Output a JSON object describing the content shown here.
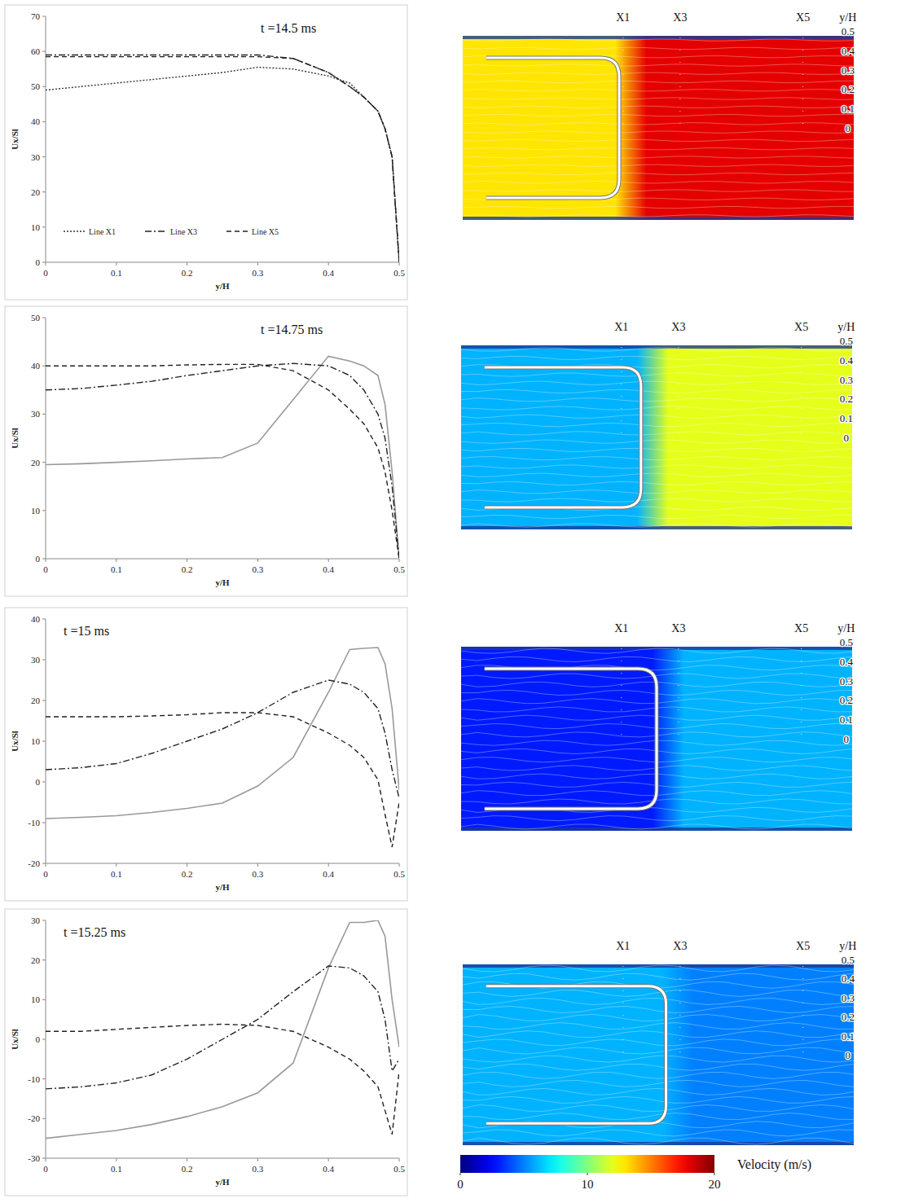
{
  "chart_data": [
    {
      "type": "line",
      "title": "t =14.5 ms",
      "x_label": "y/H",
      "y_label": "Ux/Sl",
      "x": [
        0,
        0.05,
        0.1,
        0.15,
        0.2,
        0.25,
        0.3,
        0.35,
        0.4,
        0.43,
        0.45,
        0.47,
        0.48,
        0.49,
        0.5
      ],
      "xlim": [
        0,
        0.5
      ],
      "xticks": [
        0,
        0.1,
        0.2,
        0.3,
        0.4,
        0.5
      ],
      "ylim": [
        0,
        70
      ],
      "yticks": [
        0,
        10,
        20,
        30,
        40,
        50,
        60,
        70
      ],
      "grid": false,
      "legend": "lower left",
      "series": [
        {
          "name": "Line X1",
          "color": "#333333",
          "line_style": "dotted",
          "values": [
            49,
            50,
            51,
            52,
            53,
            54,
            55.5,
            55,
            53,
            51,
            47,
            43,
            38,
            30,
            0
          ]
        },
        {
          "name": "Line X3",
          "color": "#222222",
          "line_style": "dashdot",
          "values": [
            59,
            59,
            59,
            59,
            59,
            59,
            59,
            58,
            54,
            50,
            47,
            43,
            38,
            30,
            0
          ]
        },
        {
          "name": "Line X5",
          "color": "#222222",
          "line_style": "dashed",
          "values": [
            58.5,
            58.5,
            58.5,
            58.5,
            58.5,
            58.5,
            58.5,
            58,
            54,
            50,
            47,
            43,
            38,
            30,
            0
          ]
        }
      ]
    },
    {
      "type": "line",
      "title": "t =14.75 ms",
      "x_label": "y/H",
      "y_label": "Ux/Sl",
      "x": [
        0,
        0.05,
        0.1,
        0.15,
        0.2,
        0.25,
        0.3,
        0.35,
        0.4,
        0.43,
        0.45,
        0.47,
        0.48,
        0.49,
        0.5
      ],
      "xlim": [
        0,
        0.5
      ],
      "xticks": [
        0,
        0.1,
        0.2,
        0.3,
        0.4,
        0.5
      ],
      "ylim": [
        0,
        50
      ],
      "yticks": [
        0,
        10,
        20,
        30,
        40,
        50
      ],
      "grid": false,
      "series": [
        {
          "name": "Line X1",
          "color": "#999999",
          "line_style": "solid",
          "values": [
            19.5,
            19.7,
            20,
            20.3,
            20.7,
            21,
            24,
            33,
            42,
            41,
            40,
            38,
            32,
            18,
            0
          ]
        },
        {
          "name": "Line X3",
          "color": "#222222",
          "line_style": "dashdot",
          "values": [
            35,
            35.3,
            36,
            36.8,
            38,
            39,
            40,
            40.5,
            40,
            38,
            35,
            30,
            25,
            15,
            0
          ]
        },
        {
          "name": "Line X5",
          "color": "#222222",
          "line_style": "dashed",
          "values": [
            40,
            40,
            40,
            40,
            40.2,
            40.3,
            40.3,
            39,
            35,
            31,
            28,
            23,
            18,
            10,
            0
          ]
        }
      ]
    },
    {
      "type": "line",
      "title": "t =15 ms",
      "x_label": "y/H",
      "y_label": "Ux/Sl",
      "x": [
        0,
        0.05,
        0.1,
        0.15,
        0.2,
        0.25,
        0.3,
        0.35,
        0.4,
        0.43,
        0.45,
        0.47,
        0.48,
        0.49,
        0.5
      ],
      "xlim": [
        0,
        0.5
      ],
      "xticks": [
        0,
        0.1,
        0.2,
        0.3,
        0.4,
        0.5
      ],
      "ylim": [
        -20,
        40
      ],
      "yticks": [
        -20,
        -10,
        0,
        10,
        20,
        30,
        40
      ],
      "grid": false,
      "series": [
        {
          "name": "Line X1",
          "color": "#999999",
          "line_style": "solid",
          "values": [
            -9,
            -8.7,
            -8.3,
            -7.5,
            -6.5,
            -5.2,
            -1,
            6,
            22,
            32.5,
            32.8,
            33,
            29,
            18,
            -2
          ]
        },
        {
          "name": "Line X3",
          "color": "#222222",
          "line_style": "dashdot",
          "values": [
            3,
            3.5,
            4.5,
            7,
            10,
            13,
            17,
            22,
            25,
            24,
            22,
            18,
            12,
            3,
            -4
          ]
        },
        {
          "name": "Line X5",
          "color": "#222222",
          "line_style": "dashed",
          "values": [
            16,
            16,
            16,
            16.2,
            16.5,
            17,
            17,
            16,
            12,
            9,
            6,
            0.5,
            -8,
            -16,
            -5
          ]
        }
      ]
    },
    {
      "type": "line",
      "title": "t =15.25 ms",
      "x_label": "y/H",
      "y_label": "Ux/Sl",
      "x": [
        0,
        0.05,
        0.1,
        0.15,
        0.2,
        0.25,
        0.3,
        0.35,
        0.4,
        0.43,
        0.45,
        0.47,
        0.48,
        0.49,
        0.5
      ],
      "xlim": [
        0,
        0.5
      ],
      "xticks": [
        0,
        0.1,
        0.2,
        0.3,
        0.4,
        0.5
      ],
      "ylim": [
        -30,
        30
      ],
      "yticks": [
        -30,
        -20,
        -10,
        0,
        10,
        20,
        30
      ],
      "grid": false,
      "series": [
        {
          "name": "Line X1",
          "color": "#999999",
          "line_style": "solid",
          "values": [
            -25,
            -24,
            -23,
            -21.5,
            -19.5,
            -17,
            -13.5,
            -6,
            18,
            29.5,
            29.5,
            30,
            26,
            10,
            -2
          ]
        },
        {
          "name": "Line X3",
          "color": "#222222",
          "line_style": "dashdot",
          "values": [
            -12.5,
            -12,
            -11,
            -9,
            -5,
            0,
            5,
            12,
            18.5,
            18,
            16,
            12,
            5,
            -8,
            -5
          ]
        },
        {
          "name": "Line X5",
          "color": "#222222",
          "line_style": "dashed",
          "values": [
            2,
            2,
            2.5,
            3,
            3.5,
            3.8,
            3.5,
            2,
            -2,
            -5,
            -8,
            -12,
            -18,
            -24,
            -8
          ]
        }
      ]
    }
  ],
  "flow_fields": {
    "panels": [
      {
        "probe_labels": [
          "X1",
          "X3",
          "X5"
        ],
        "yh_label": "y/H",
        "yh_ticks": [
          0.5,
          0.4,
          0.3,
          0.2,
          0.1,
          0
        ],
        "velocity_behind_front": 13,
        "velocity_ahead_of_front": 18
      },
      {
        "probe_labels": [
          "X1",
          "X3",
          "X5"
        ],
        "yh_label": "y/H",
        "yh_ticks": [
          0.5,
          0.4,
          0.3,
          0.2,
          0.1,
          0
        ],
        "velocity_behind_front": 6,
        "velocity_ahead_of_front": 12
      },
      {
        "probe_labels": [
          "X1",
          "X3",
          "X5"
        ],
        "yh_label": "y/H",
        "yh_ticks": [
          0.5,
          0.4,
          0.3,
          0.2,
          0.1,
          0
        ],
        "velocity_behind_front": 3,
        "velocity_ahead_of_front": 6
      },
      {
        "probe_labels": [
          "X1",
          "X3",
          "X5"
        ],
        "yh_label": "y/H",
        "yh_ticks": [
          0.5,
          0.4,
          0.3,
          0.2,
          0.1,
          0
        ],
        "velocity_behind_front": 6,
        "velocity_ahead_of_front": 5
      }
    ],
    "colorbar": {
      "range": [
        0,
        20
      ],
      "ticks": [
        0,
        10,
        20
      ],
      "label": "Velocity (m/s)"
    }
  }
}
